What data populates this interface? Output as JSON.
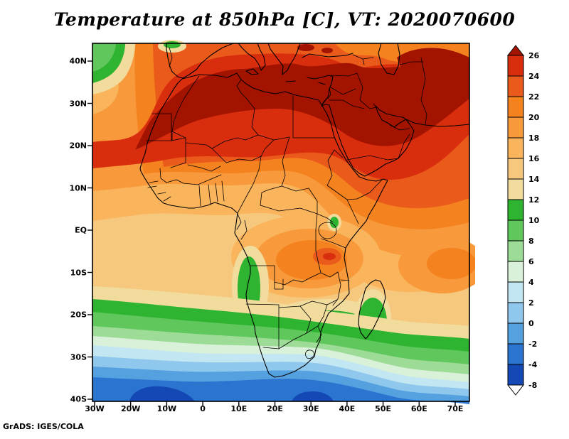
{
  "title": "Temperature at 850hPa [C], VT: 2020070600",
  "credit": "GrADS: IGES/COLA",
  "map": {
    "y_ticks": [
      "40N",
      "30N",
      "20N",
      "10N",
      "EQ",
      "10S",
      "20S",
      "30S",
      "40S"
    ],
    "x_ticks": [
      "30W",
      "20W",
      "10W",
      "0",
      "10E",
      "20E",
      "30E",
      "40E",
      "50E",
      "60E",
      "70E"
    ]
  },
  "colorbar": {
    "labels": [
      "26",
      "24",
      "22",
      "20",
      "18",
      "16",
      "14",
      "12",
      "10",
      "8",
      "6",
      "4",
      "2",
      "0",
      "-2",
      "-4",
      "-8"
    ],
    "segment_order": [
      "c26",
      "c24",
      "c22",
      "c20",
      "c18",
      "c16",
      "c14",
      "c12",
      "c10",
      "c8",
      "c6",
      "c4",
      "c2",
      "c0",
      "cm2",
      "cm4",
      "cm8",
      "below"
    ],
    "unit": "C"
  },
  "palette": {
    "c26": "#a31400",
    "c24": "#d92e0e",
    "c22": "#ea5a1a",
    "c20": "#f4821f",
    "c18": "#f89a3b",
    "c16": "#fab45c",
    "c14": "#f6c87e",
    "c12": "#f1dc9e",
    "c10": "#2eb430",
    "c8": "#5fc75c",
    "c6": "#9cdc96",
    "c4": "#d9f0d9",
    "c2": "#c2e6f2",
    "c0": "#8fc8ec",
    "cm2": "#55a1e0",
    "cm4": "#2b74cf",
    "cm8": "#1448b4",
    "below": "#ffffff"
  },
  "chart_data": {
    "type": "filled_contour_map",
    "title": "Temperature at 850hPa [C], VT: 2020070600",
    "variable": "Temperature",
    "level": "850hPa",
    "units": "C",
    "valid_time": "2020070600",
    "contour_interval": 2,
    "levels_shown": [
      -8,
      -4,
      -2,
      0,
      2,
      4,
      6,
      8,
      10,
      12,
      14,
      16,
      18,
      20,
      22,
      24,
      26
    ],
    "x_axis": {
      "ticks": [
        "30W",
        "20W",
        "10W",
        "0",
        "10E",
        "20E",
        "30E",
        "40E",
        "50E",
        "60E",
        "70E"
      ]
    },
    "y_axis": {
      "ticks": [
        "40N",
        "30N",
        "20N",
        "10N",
        "EQ",
        "10S",
        "20S",
        "30S",
        "40S"
      ]
    },
    "legend_position": "right"
  }
}
